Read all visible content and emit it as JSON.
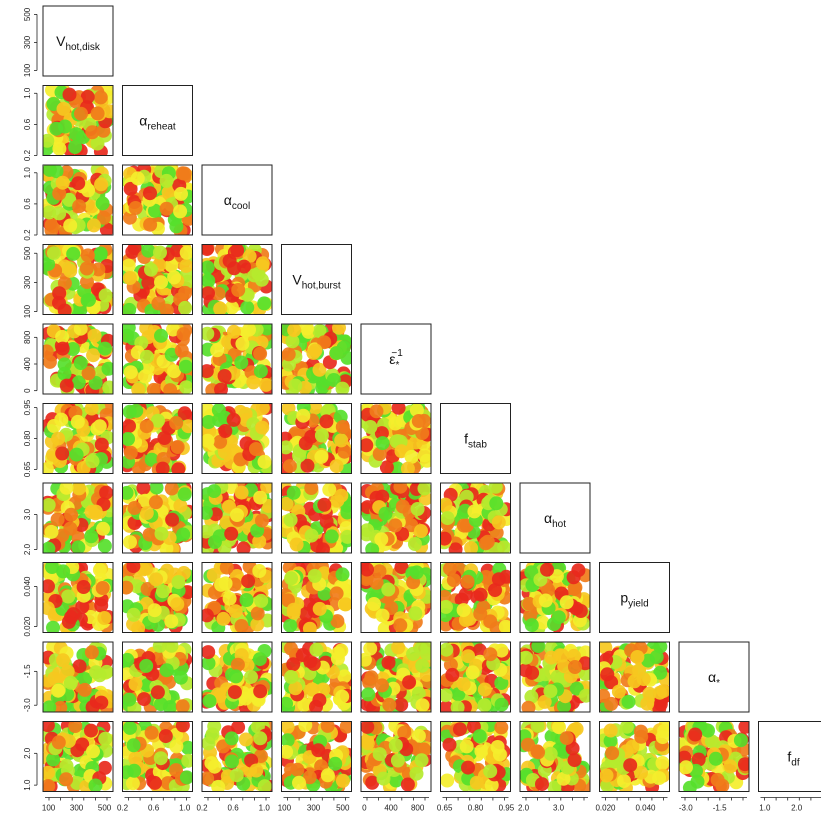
{
  "chart_data": {
    "type": "scatter",
    "title": "",
    "variables": [
      {
        "label": "V",
        "sub": "hot,disk",
        "sup": "",
        "ticks": [
          100,
          300,
          500
        ],
        "tick_labels": [
          "100",
          "300",
          "500"
        ],
        "range": [
          60,
          560
        ],
        "scale": "linear"
      },
      {
        "label": "α",
        "sub": "reheat",
        "sup": "",
        "ticks": [
          0.2,
          0.6,
          1.0
        ],
        "tick_labels": [
          "0.2",
          "0.6",
          "1.0"
        ],
        "range": [
          0.2,
          1.1
        ],
        "scale": "linear"
      },
      {
        "label": "α",
        "sub": "cool",
        "sup": "",
        "ticks": [
          0.2,
          0.6,
          1.0
        ],
        "tick_labels": [
          "0.2",
          "0.6",
          "1.0"
        ],
        "range": [
          0.2,
          1.1
        ],
        "scale": "linear"
      },
      {
        "label": "V",
        "sub": "hot,burst",
        "sup": "",
        "ticks": [
          100,
          300,
          500
        ],
        "tick_labels": [
          "100",
          "300",
          "500"
        ],
        "range": [
          80,
          560
        ],
        "scale": "linear"
      },
      {
        "label": "ε",
        "sub": "*",
        "sup": "−1",
        "ticks": [
          0,
          400,
          800
        ],
        "tick_labels": [
          "0",
          "400",
          "800"
        ],
        "range": [
          -50,
          1000
        ],
        "scale": "linear"
      },
      {
        "label": "f",
        "sub": "stab",
        "sup": "",
        "ticks": [
          0.65,
          0.8,
          0.95
        ],
        "tick_labels": [
          "0.65",
          "0.80",
          "0.95"
        ],
        "range": [
          0.63,
          0.97
        ],
        "scale": "linear"
      },
      {
        "label": "α",
        "sub": "hot",
        "sup": "",
        "ticks": [
          2.0,
          3.0
        ],
        "tick_labels": [
          "2.0",
          "3.0"
        ],
        "range": [
          1.9,
          3.9
        ],
        "scale": "linear"
      },
      {
        "label": "p",
        "sub": "yield",
        "sup": "",
        "ticks": [
          0.02,
          0.04
        ],
        "tick_labels": [
          "0.020",
          "0.040"
        ],
        "range": [
          0.017,
          0.052
        ],
        "scale": "linear"
      },
      {
        "label": "α",
        "sub": "*",
        "sup": "",
        "ticks": [
          -3.0,
          -1.5
        ],
        "tick_labels": [
          "-3.0",
          "-1.5"
        ],
        "range": [
          -3.3,
          -0.2
        ],
        "scale": "linear"
      },
      {
        "label": "f",
        "sub": "df",
        "sup": "",
        "ticks": [
          1.0,
          2.0
        ],
        "tick_labels": [
          "1.0",
          "2.0"
        ],
        "range": [
          0.8,
          3.0
        ],
        "scale": "linear"
      }
    ],
    "points_per_panel": 90,
    "color_scale": [
      "#e8291c",
      "#f07c1a",
      "#f6c820",
      "#f4ee2c",
      "#b5ea2e",
      "#56e02b"
    ],
    "legend": "none",
    "grid": false
  }
}
